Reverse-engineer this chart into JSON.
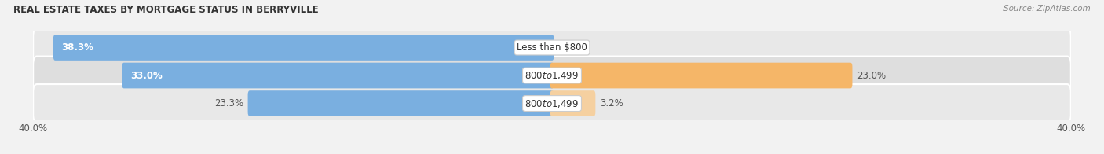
{
  "title": "REAL ESTATE TAXES BY MORTGAGE STATUS IN BERRYVILLE",
  "source": "Source: ZipAtlas.com",
  "rows": [
    {
      "label": "Less than $800",
      "without_mortgage": 38.3,
      "with_mortgage": 0.0
    },
    {
      "label": "$800 to $1,499",
      "without_mortgage": 33.0,
      "with_mortgage": 23.0
    },
    {
      "label": "$800 to $1,499",
      "without_mortgage": 23.3,
      "with_mortgage": 3.2
    }
  ],
  "xlim": [
    -40,
    40
  ],
  "color_without": "#7aafe0",
  "color_with": "#f5b668",
  "color_with_light": "#f5d0a0",
  "bar_height": 0.62,
  "title_fontsize": 8.5,
  "source_fontsize": 7.5,
  "label_fontsize": 8.5,
  "value_fontsize": 8.5,
  "tick_fontsize": 8.5,
  "legend_fontsize": 8.5,
  "bg_color": "#f2f2f2",
  "row_bg_light": "#e8e8e8",
  "row_bg_dark": "#dedede",
  "label_box_color": "#ffffff"
}
